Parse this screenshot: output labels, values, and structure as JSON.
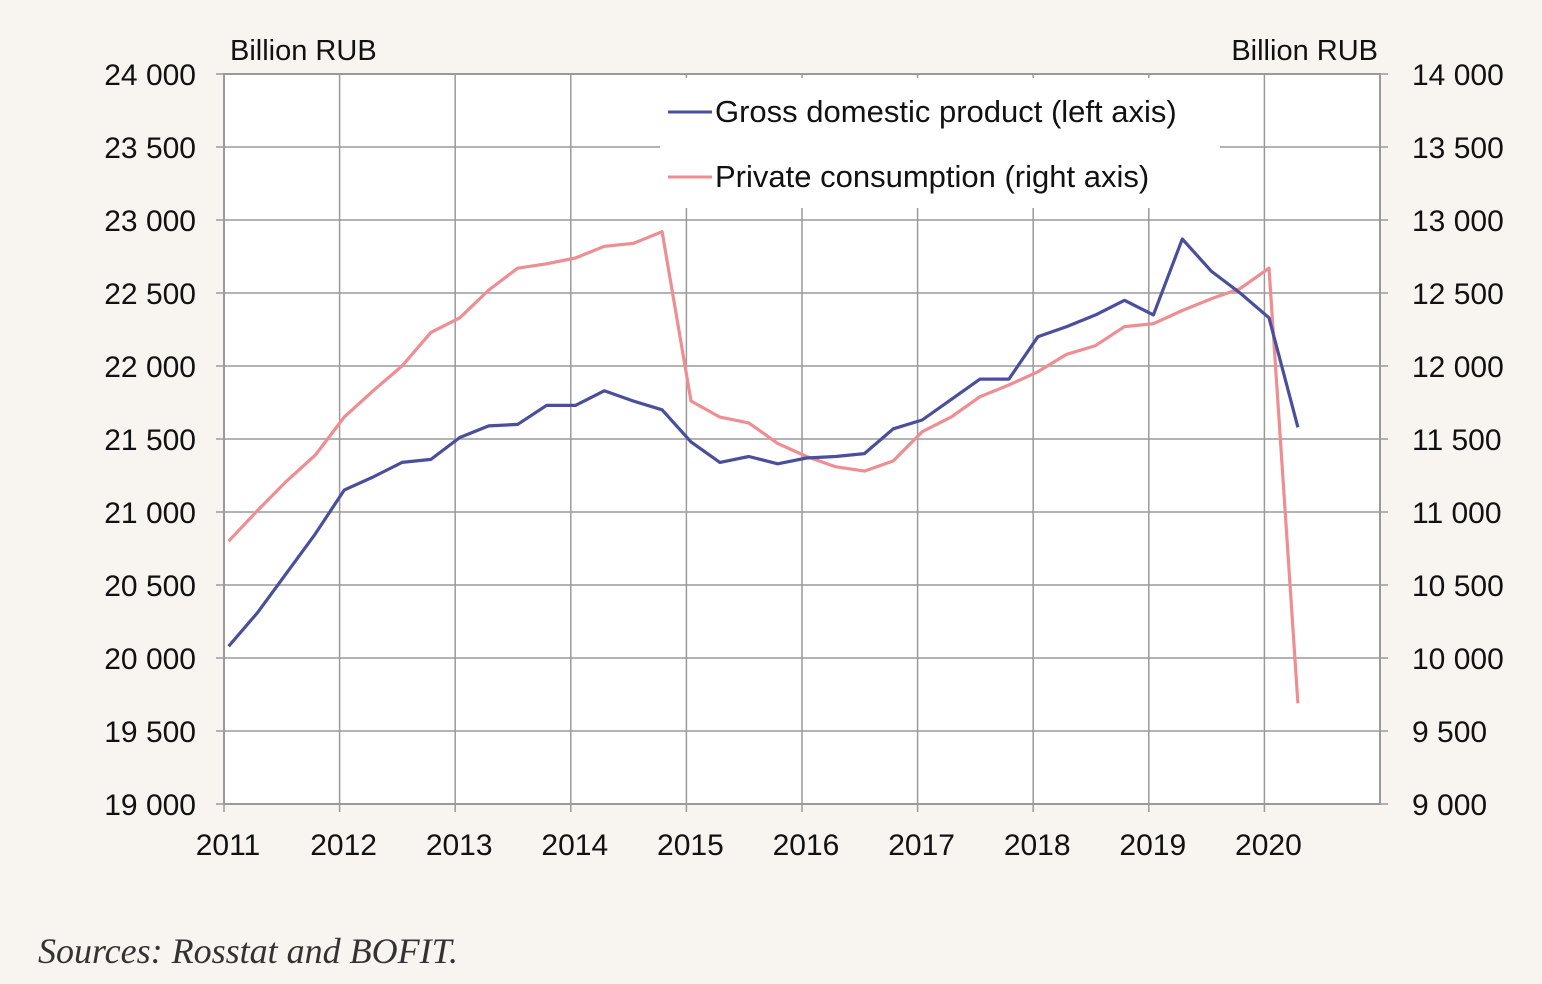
{
  "source_note": "Sources: Rosstat and BOFIT.",
  "colors": {
    "background": "#f8f4ef",
    "plot_background": "#ffffff",
    "gdp": "#4a4f9c",
    "consumption": "#ee8e92",
    "grid": "#9a9a9a"
  },
  "chart_data": {
    "type": "line",
    "title": "",
    "x_tick_labels": [
      "2011",
      "2012",
      "2013",
      "2014",
      "2015",
      "2016",
      "2017",
      "2018",
      "2019",
      "2020"
    ],
    "xlim": [
      2011,
      2021
    ],
    "left_axis": {
      "unit": "Billion RUB",
      "ylim": [
        19000,
        24000
      ],
      "ticks": [
        19000,
        19500,
        20000,
        20500,
        21000,
        21500,
        22000,
        22500,
        23000,
        23500,
        24000
      ],
      "tick_labels": [
        "19 000",
        "19 500",
        "20 000",
        "20 500",
        "21 000",
        "21 500",
        "22 000",
        "22 500",
        "23 000",
        "23 500",
        "24 000"
      ]
    },
    "right_axis": {
      "unit": "Billion RUB",
      "ylim": [
        9000,
        14000
      ],
      "ticks": [
        9000,
        9500,
        10000,
        10500,
        11000,
        11500,
        12000,
        12500,
        13000,
        13500,
        14000
      ],
      "tick_labels": [
        "9 000",
        "9 500",
        "10 000",
        "10 500",
        "11 000",
        "11 500",
        "12 000",
        "12 500",
        "13 000",
        "13 500",
        "14 000"
      ]
    },
    "grid": true,
    "legend_position": "top-center",
    "x_quarters": [
      "2011Q1",
      "2011Q2",
      "2011Q3",
      "2011Q4",
      "2012Q1",
      "2012Q2",
      "2012Q3",
      "2012Q4",
      "2013Q1",
      "2013Q2",
      "2013Q3",
      "2013Q4",
      "2014Q1",
      "2014Q2",
      "2014Q3",
      "2014Q4",
      "2015Q1",
      "2015Q2",
      "2015Q3",
      "2015Q4",
      "2016Q1",
      "2016Q2",
      "2016Q3",
      "2016Q4",
      "2017Q1",
      "2017Q2",
      "2017Q3",
      "2017Q4",
      "2018Q1",
      "2018Q2",
      "2018Q3",
      "2018Q4",
      "2019Q1",
      "2019Q2",
      "2019Q3",
      "2019Q4",
      "2020Q1",
      "2020Q2"
    ],
    "series": [
      {
        "name": "Gross domestic product (left axis)",
        "axis": "left",
        "values": [
          20080,
          20310,
          20580,
          20850,
          21150,
          21240,
          21340,
          21360,
          21510,
          21590,
          21600,
          21730,
          21730,
          21830,
          21760,
          21700,
          21480,
          21340,
          21380,
          21330,
          21370,
          21380,
          21400,
          21570,
          21630,
          21770,
          21910,
          21910,
          22200,
          22270,
          22350,
          22450,
          22350,
          22870,
          22650,
          22500,
          22330,
          21580
        ]
      },
      {
        "name": "Private consumption (right axis)",
        "axis": "right",
        "values": [
          10800,
          11010,
          11210,
          11390,
          11650,
          11830,
          12000,
          12230,
          12330,
          12520,
          12670,
          12700,
          12740,
          12820,
          12840,
          12920,
          11760,
          11650,
          11610,
          11470,
          11380,
          11310,
          11280,
          11350,
          11550,
          11650,
          11790,
          11870,
          11960,
          12080,
          12140,
          12270,
          12290,
          12380,
          12460,
          12530,
          12670,
          9690
        ]
      }
    ]
  }
}
